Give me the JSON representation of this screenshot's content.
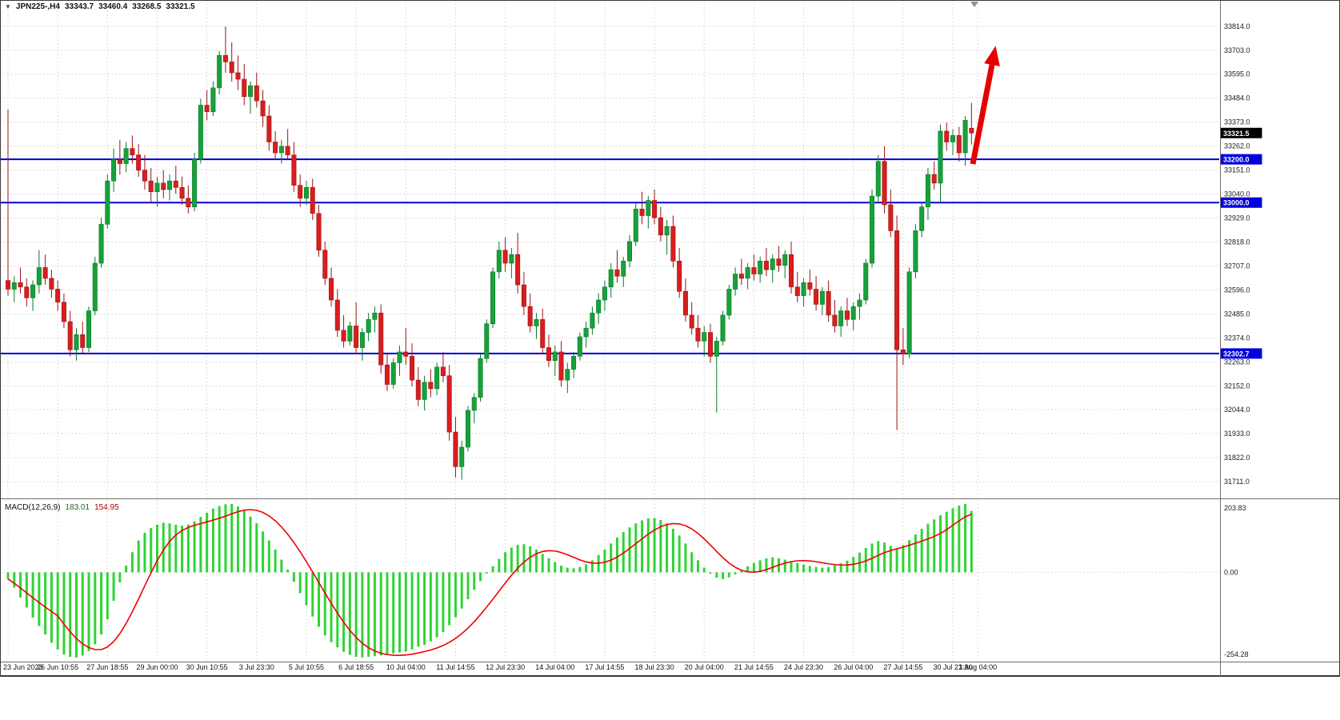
{
  "header": {
    "title": "JPN225-,H4",
    "open": "33343.7",
    "high": "33460.4",
    "low": "33268.5",
    "close": "33321.5"
  },
  "macd_indicator": {
    "name": "MACD(12,26,9)",
    "macd_value": "183.01",
    "signal_value": "154.95"
  },
  "macd_axis": {
    "max": "203.83",
    "zero": "0.00",
    "min": "-254.28"
  },
  "colors": {
    "background": "#ffffff",
    "grid": "#d0d0d0",
    "bull": "#17a13a",
    "bull_border": "#077a26",
    "bear": "#d81e1e",
    "bear_border": "#9c1212",
    "hline": "#0000dd",
    "current_price_badge": "#000000",
    "macd_histogram": "#2fd435",
    "macd_signal": "#f20000",
    "arrow": "#e60000",
    "axis_text": "#1a1a1a",
    "shift_marker": "#909090"
  },
  "chart_data": {
    "type": "candlestick",
    "symbol": "JPN225-",
    "timeframe": "H4",
    "ylim": [
      31711.0,
      33814.0
    ],
    "last_price": 33321.5,
    "price_gridlines": [
      33814.0,
      33703.0,
      33595.0,
      33484.0,
      33373.0,
      33262.0,
      33151.0,
      33040.0,
      32929.0,
      32818.0,
      32707.0,
      32596.0,
      32485.0,
      32374.0,
      32263.0,
      32152.0,
      32044.0,
      31933.0,
      31822.0,
      31711.0
    ],
    "horizontal_lines": [
      {
        "price": 33200.0,
        "label": "33200.0"
      },
      {
        "price": 33000.0,
        "label": "33000.0"
      },
      {
        "price": 32302.7,
        "label": "32302.7"
      }
    ],
    "time_labels": [
      {
        "label": "23 Jun 2023",
        "index": 0
      },
      {
        "label": "26 Jun 10:55",
        "index": 8
      },
      {
        "label": "27 Jun 18:55",
        "index": 16
      },
      {
        "label": "29 Jun 00:00",
        "index": 24
      },
      {
        "label": "30 Jun 10:55",
        "index": 32
      },
      {
        "label": "3 Jul 23:30",
        "index": 40
      },
      {
        "label": "5 Jul 10:55",
        "index": 48
      },
      {
        "label": "6 Jul 18:55",
        "index": 56
      },
      {
        "label": "10 Jul 04:00",
        "index": 64
      },
      {
        "label": "11 Jul 14:55",
        "index": 72
      },
      {
        "label": "12 Jul 23:30",
        "index": 80
      },
      {
        "label": "14 Jul 04:00",
        "index": 88
      },
      {
        "label": "17 Jul 14:55",
        "index": 96
      },
      {
        "label": "18 Jul 23:30",
        "index": 104
      },
      {
        "label": "20 Jul 04:00",
        "index": 112
      },
      {
        "label": "21 Jul 14:55",
        "index": 120
      },
      {
        "label": "24 Jul 23:30",
        "index": 128
      },
      {
        "label": "26 Jul 04:00",
        "index": 136
      },
      {
        "label": "27 Jul 14:55",
        "index": 144
      },
      {
        "label": "30 Jul 23:30",
        "index": 152
      },
      {
        "label": "1 Aug 04:00",
        "index": 156
      }
    ],
    "candles": [
      [
        32640,
        33430,
        32570,
        32600
      ],
      [
        32600,
        32660,
        32540,
        32630
      ],
      [
        32630,
        32700,
        32580,
        32610
      ],
      [
        32610,
        32650,
        32520,
        32560
      ],
      [
        32560,
        32640,
        32500,
        32620
      ],
      [
        32620,
        32780,
        32580,
        32700
      ],
      [
        32700,
        32760,
        32620,
        32650
      ],
      [
        32650,
        32690,
        32560,
        32600
      ],
      [
        32600,
        32640,
        32500,
        32540
      ],
      [
        32540,
        32580,
        32420,
        32450
      ],
      [
        32450,
        32500,
        32290,
        32320
      ],
      [
        32320,
        32420,
        32270,
        32390
      ],
      [
        32390,
        32450,
        32300,
        32330
      ],
      [
        32330,
        32520,
        32310,
        32500
      ],
      [
        32500,
        32750,
        32480,
        32720
      ],
      [
        32720,
        32930,
        32700,
        32900
      ],
      [
        32900,
        33130,
        32880,
        33100
      ],
      [
        33100,
        33250,
        33050,
        33200
      ],
      [
        33200,
        33290,
        33130,
        33180
      ],
      [
        33180,
        33280,
        33140,
        33250
      ],
      [
        33250,
        33310,
        33180,
        33220
      ],
      [
        33220,
        33270,
        33120,
        33150
      ],
      [
        33150,
        33220,
        33060,
        33100
      ],
      [
        33100,
        33160,
        33000,
        33050
      ],
      [
        33050,
        33120,
        32980,
        33090
      ],
      [
        33090,
        33150,
        33020,
        33060
      ],
      [
        33060,
        33130,
        33010,
        33100
      ],
      [
        33100,
        33170,
        33040,
        33070
      ],
      [
        33070,
        33120,
        32990,
        33020
      ],
      [
        33020,
        33080,
        32950,
        32980
      ],
      [
        32980,
        33230,
        32960,
        33200
      ],
      [
        33200,
        33480,
        33180,
        33450
      ],
      [
        33450,
        33520,
        33380,
        33420
      ],
      [
        33420,
        33560,
        33400,
        33530
      ],
      [
        33530,
        33700,
        33500,
        33680
      ],
      [
        33680,
        33814,
        33600,
        33650
      ],
      [
        33650,
        33740,
        33560,
        33600
      ],
      [
        33600,
        33680,
        33520,
        33570
      ],
      [
        33570,
        33640,
        33450,
        33490
      ],
      [
        33490,
        33560,
        33410,
        33540
      ],
      [
        33540,
        33600,
        33440,
        33470
      ],
      [
        33470,
        33520,
        33350,
        33400
      ],
      [
        33400,
        33450,
        33240,
        33280
      ],
      [
        33280,
        33330,
        33200,
        33230
      ],
      [
        33230,
        33290,
        33180,
        33260
      ],
      [
        33260,
        33340,
        33200,
        33220
      ],
      [
        33220,
        33280,
        33050,
        33080
      ],
      [
        33080,
        33130,
        32980,
        33020
      ],
      [
        33020,
        33100,
        32990,
        33070
      ],
      [
        33070,
        33110,
        32920,
        32950
      ],
      [
        32950,
        32990,
        32750,
        32780
      ],
      [
        32780,
        32820,
        32620,
        32650
      ],
      [
        32650,
        32700,
        32520,
        32550
      ],
      [
        32550,
        32600,
        32380,
        32410
      ],
      [
        32410,
        32480,
        32330,
        32360
      ],
      [
        32360,
        32450,
        32340,
        32430
      ],
      [
        32430,
        32540,
        32300,
        32330
      ],
      [
        32330,
        32420,
        32270,
        32400
      ],
      [
        32400,
        32490,
        32360,
        32460
      ],
      [
        32460,
        32520,
        32400,
        32490
      ],
      [
        32490,
        32530,
        32210,
        32250
      ],
      [
        32250,
        32300,
        32130,
        32160
      ],
      [
        32160,
        32280,
        32140,
        32260
      ],
      [
        32260,
        32340,
        32200,
        32310
      ],
      [
        32310,
        32420,
        32250,
        32290
      ],
      [
        32290,
        32350,
        32150,
        32180
      ],
      [
        32180,
        32240,
        32060,
        32090
      ],
      [
        32090,
        32200,
        32040,
        32170
      ],
      [
        32170,
        32230,
        32100,
        32140
      ],
      [
        32140,
        32260,
        32110,
        32240
      ],
      [
        32240,
        32310,
        32170,
        32200
      ],
      [
        32200,
        32250,
        31900,
        31940
      ],
      [
        31940,
        32010,
        31730,
        31780
      ],
      [
        31780,
        31900,
        31720,
        31870
      ],
      [
        31870,
        32060,
        31850,
        32040
      ],
      [
        32040,
        32120,
        31980,
        32100
      ],
      [
        32100,
        32300,
        32080,
        32280
      ],
      [
        32280,
        32460,
        32260,
        32440
      ],
      [
        32440,
        32700,
        32420,
        32680
      ],
      [
        32680,
        32820,
        32650,
        32780
      ],
      [
        32780,
        32840,
        32680,
        32720
      ],
      [
        32720,
        32790,
        32650,
        32760
      ],
      [
        32760,
        32860,
        32580,
        32620
      ],
      [
        32620,
        32680,
        32480,
        32520
      ],
      [
        32520,
        32580,
        32400,
        32430
      ],
      [
        32430,
        32490,
        32370,
        32460
      ],
      [
        32460,
        32510,
        32300,
        32330
      ],
      [
        32330,
        32390,
        32240,
        32270
      ],
      [
        32270,
        32340,
        32200,
        32310
      ],
      [
        32310,
        32360,
        32150,
        32180
      ],
      [
        32180,
        32260,
        32120,
        32230
      ],
      [
        32230,
        32310,
        32190,
        32290
      ],
      [
        32290,
        32400,
        32270,
        32380
      ],
      [
        32380,
        32450,
        32330,
        32420
      ],
      [
        32420,
        32520,
        32390,
        32490
      ],
      [
        32490,
        32580,
        32440,
        32550
      ],
      [
        32550,
        32640,
        32500,
        32610
      ],
      [
        32610,
        32720,
        32560,
        32690
      ],
      [
        32690,
        32780,
        32630,
        32660
      ],
      [
        32660,
        32750,
        32610,
        32730
      ],
      [
        32730,
        32850,
        32700,
        32820
      ],
      [
        32820,
        33000,
        32800,
        32970
      ],
      [
        32970,
        33050,
        32900,
        32940
      ],
      [
        32940,
        33030,
        32880,
        33010
      ],
      [
        33010,
        33060,
        32900,
        32930
      ],
      [
        32930,
        32980,
        32820,
        32850
      ],
      [
        32850,
        32920,
        32760,
        32890
      ],
      [
        32890,
        32940,
        32700,
        32730
      ],
      [
        32730,
        32790,
        32560,
        32590
      ],
      [
        32590,
        32650,
        32450,
        32480
      ],
      [
        32480,
        32540,
        32390,
        32420
      ],
      [
        32420,
        32480,
        32330,
        32360
      ],
      [
        32360,
        32430,
        32290,
        32400
      ],
      [
        32400,
        32440,
        32260,
        32290
      ],
      [
        32290,
        32380,
        32030,
        32360
      ],
      [
        32360,
        32500,
        32340,
        32480
      ],
      [
        32480,
        32620,
        32460,
        32600
      ],
      [
        32600,
        32700,
        32570,
        32670
      ],
      [
        32670,
        32740,
        32620,
        32650
      ],
      [
        32650,
        32720,
        32600,
        32700
      ],
      [
        32700,
        32760,
        32640,
        32670
      ],
      [
        32670,
        32750,
        32630,
        32730
      ],
      [
        32730,
        32790,
        32660,
        32690
      ],
      [
        32690,
        32760,
        32630,
        32740
      ],
      [
        32740,
        32800,
        32680,
        32710
      ],
      [
        32710,
        32780,
        32650,
        32760
      ],
      [
        32760,
        32820,
        32580,
        32610
      ],
      [
        32610,
        32680,
        32540,
        32570
      ],
      [
        32570,
        32650,
        32520,
        32630
      ],
      [
        32630,
        32690,
        32570,
        32600
      ],
      [
        32600,
        32660,
        32500,
        32530
      ],
      [
        32530,
        32610,
        32480,
        32590
      ],
      [
        32590,
        32640,
        32450,
        32480
      ],
      [
        32480,
        32550,
        32400,
        32430
      ],
      [
        32430,
        32520,
        32380,
        32500
      ],
      [
        32500,
        32560,
        32430,
        32460
      ],
      [
        32460,
        32540,
        32410,
        32520
      ],
      [
        32520,
        32580,
        32460,
        32550
      ],
      [
        32550,
        32740,
        32530,
        32720
      ],
      [
        32720,
        33060,
        32700,
        33030
      ],
      [
        33030,
        33220,
        33000,
        33190
      ],
      [
        33190,
        33260,
        32950,
        32990
      ],
      [
        32990,
        33060,
        32840,
        32870
      ],
      [
        32870,
        32940,
        31950,
        32320
      ],
      [
        32320,
        32420,
        32250,
        32300
      ],
      [
        32300,
        32700,
        32280,
        32680
      ],
      [
        32680,
        32900,
        32650,
        32870
      ],
      [
        32870,
        33000,
        32840,
        32980
      ],
      [
        32980,
        33160,
        32920,
        33130
      ],
      [
        33130,
        33190,
        33060,
        33090
      ],
      [
        33090,
        33360,
        33000,
        33330
      ],
      [
        33330,
        33370,
        33240,
        33280
      ],
      [
        33280,
        33340,
        33220,
        33310
      ],
      [
        33310,
        33350,
        33190,
        33230
      ],
      [
        33230,
        33400,
        33170,
        33380
      ],
      [
        33343.7,
        33460.4,
        33268.5,
        33321.5
      ]
    ],
    "macd": {
      "params": "12,26,9",
      "current_macd": 183.01,
      "current_signal": 154.95,
      "signal_period": 9,
      "ylim": [
        -254.28,
        203.83
      ],
      "histogram": [
        -20,
        -45,
        -75,
        -105,
        -135,
        -160,
        -185,
        -210,
        -230,
        -245,
        -252,
        -254,
        -248,
        -235,
        -215,
        -185,
        -140,
        -85,
        -30,
        20,
        60,
        95,
        118,
        132,
        142,
        148,
        146,
        142,
        139,
        143,
        152,
        165,
        178,
        190,
        198,
        203,
        204,
        196,
        184,
        166,
        146,
        122,
        95,
        68,
        38,
        8,
        -28,
        -62,
        -98,
        -132,
        -162,
        -188,
        -208,
        -224,
        -237,
        -246,
        -252,
        -254,
        -252,
        -250,
        -248,
        -245,
        -242,
        -239,
        -236,
        -230,
        -222,
        -216,
        -206,
        -194,
        -178,
        -158,
        -134,
        -108,
        -80,
        -52,
        -26,
        -4,
        18,
        40,
        60,
        74,
        82,
        84,
        78,
        68,
        55,
        42,
        30,
        20,
        14,
        12,
        16,
        24,
        36,
        52,
        68,
        86,
        104,
        120,
        134,
        146,
        155,
        161,
        162,
        156,
        146,
        130,
        110,
        86,
        60,
        36,
        14,
        -4,
        -16,
        -20,
        -15,
        -6,
        6,
        18,
        28,
        36,
        42,
        45,
        42,
        38,
        33,
        28,
        23,
        19,
        16,
        14,
        16,
        21,
        27,
        35,
        46,
        59,
        73,
        86,
        93,
        89,
        79,
        72,
        81,
        96,
        113,
        130,
        145,
        158,
        170,
        181,
        191,
        199,
        203.83,
        183.01
      ]
    },
    "annotations": [
      {
        "type": "up-arrow",
        "color": "#e60000",
        "tail": [
          1216,
          205
        ],
        "head": [
          1240,
          81
        ],
        "head_length": 24,
        "head_width": 10
      }
    ]
  }
}
